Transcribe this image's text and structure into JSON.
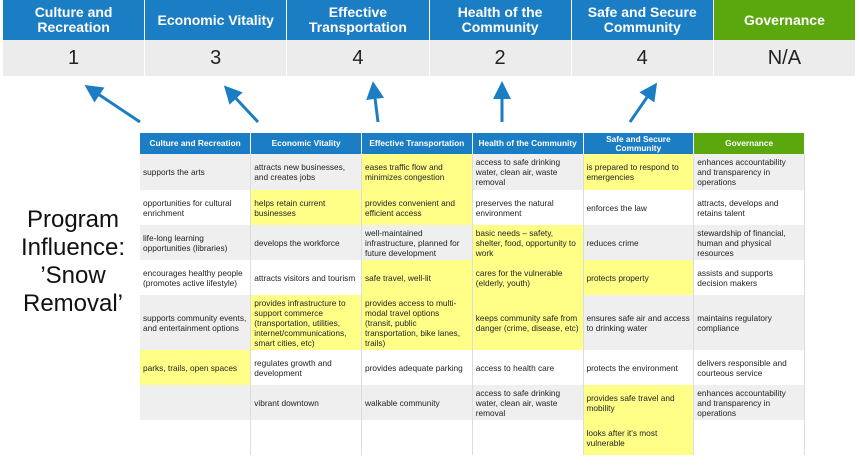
{
  "colors": {
    "header_blue": "#1b7dc3",
    "governance_green": "#5aa70e",
    "highlight": "#ffff88",
    "arrow": "#1b7dc3"
  },
  "top_headers": [
    "Culture and Recreation",
    "Economic Vitality",
    "Effective Transportation",
    "Health of the Community",
    "Safe and Secure Community",
    "Governance"
  ],
  "scores": [
    "1",
    "3",
    "4",
    "2",
    "4",
    "N/A"
  ],
  "title": "Program Influence: ’Snow Removal’",
  "table": {
    "headers": [
      "Culture and Recreation",
      "Economic Vitality",
      "Effective Transportation",
      "Health of the Community",
      "Safe and Secure Community",
      "Governance"
    ],
    "rows": [
      [
        {
          "t": "supports the arts"
        },
        {
          "t": "attracts new businesses, and creates jobs"
        },
        {
          "t": "eases traffic flow and minimizes congestion",
          "h": true
        },
        {
          "t": "access to safe drinking water, clean air, waste removal"
        },
        {
          "t": "is prepared to respond to emergencies",
          "h": true
        },
        {
          "t": "enhances accountability and transparency in operations"
        }
      ],
      [
        {
          "t": "opportunities for cultural enrichment"
        },
        {
          "t": "helps retain current businesses",
          "h": true
        },
        {
          "t": "provides convenient and efficient access",
          "h": true
        },
        {
          "t": "preserves the natural environment"
        },
        {
          "t": "enforces the law"
        },
        {
          "t": "attracts, develops and retains talent"
        }
      ],
      [
        {
          "t": "life-long learning opportunities (libraries)"
        },
        {
          "t": "develops the workforce"
        },
        {
          "t": "well-maintained infrastructure, planned for future development"
        },
        {
          "t": "basic needs – safety, shelter, food, opportunity to work",
          "h": true
        },
        {
          "t": "reduces crime"
        },
        {
          "t": "stewardship of financial, human and physical resources"
        }
      ],
      [
        {
          "t": "encourages healthy people (promotes active lifestyle)"
        },
        {
          "t": "attracts visitors and tourism"
        },
        {
          "t": "safe travel, well-lit",
          "h": true
        },
        {
          "t": "cares for the vulnerable (elderly, youth)",
          "h": true
        },
        {
          "t": "protects property",
          "h": true
        },
        {
          "t": "assists and supports decision makers"
        }
      ],
      [
        {
          "t": "supports community events, and entertainment options"
        },
        {
          "t": "provides infrastructure to support commerce (transportation, utilities, internet/communications, smart cities, etc)",
          "h": true
        },
        {
          "t": "provides access to multi-modal travel options (transit, public transportation, bike lanes, trails)",
          "h": true
        },
        {
          "t": "keeps community safe from danger (crime, disease, etc)",
          "h": true
        },
        {
          "t": "ensures safe air and access to drinking water"
        },
        {
          "t": "maintains regulatory compliance"
        }
      ],
      [
        {
          "t": "parks, trails, open spaces",
          "h": true
        },
        {
          "t": "regulates growth and development"
        },
        {
          "t": "provides adequate parking"
        },
        {
          "t": "access to health care"
        },
        {
          "t": "protects the environment"
        },
        {
          "t": "delivers responsible and courteous service"
        }
      ],
      [
        {
          "t": ""
        },
        {
          "t": "vibrant downtown"
        },
        {
          "t": "walkable community"
        },
        {
          "t": "access to safe drinking water, clean air, waste removal"
        },
        {
          "t": "provides safe travel and mobility",
          "h": true
        },
        {
          "t": "enhances accountability and transparency in operations"
        }
      ],
      [
        {
          "t": ""
        },
        {
          "t": ""
        },
        {
          "t": ""
        },
        {
          "t": ""
        },
        {
          "t": "looks after it's most vulnerable",
          "h": true
        },
        {
          "t": ""
        }
      ]
    ]
  }
}
